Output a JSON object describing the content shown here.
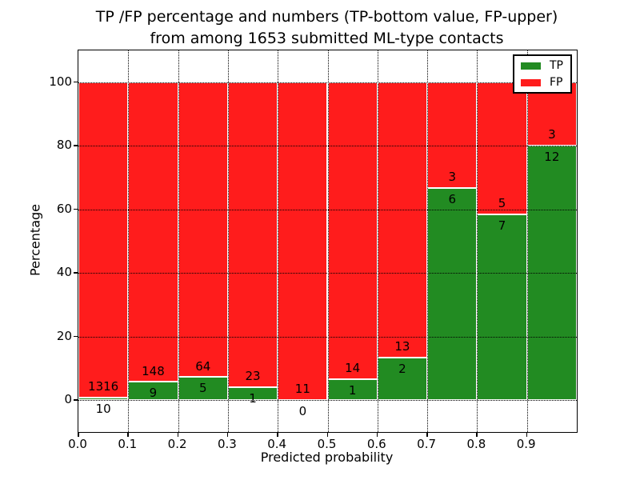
{
  "title": {
    "line1": "TP /FP percentage and numbers (TP-bottom value, FP-upper)",
    "line2": "from among 1653 submitted ML-type contacts"
  },
  "chart_data": {
    "type": "bar",
    "stacked": true,
    "normalized": "each bin stacks to 100 percent",
    "title": "TP /FP percentage and numbers (TP-bottom value, FP-upper)\nfrom among 1653 submitted ML-type contacts",
    "xlabel": "Predicted probability",
    "ylabel": "Percentage",
    "total_contacts": 1653,
    "bins": [
      {
        "range": [
          0.0,
          0.1
        ],
        "tp": 10,
        "fp": 1316,
        "tp_percent": 0.75
      },
      {
        "range": [
          0.1,
          0.2
        ],
        "tp": 9,
        "fp": 148,
        "tp_percent": 5.73
      },
      {
        "range": [
          0.2,
          0.3
        ],
        "tp": 5,
        "fp": 64,
        "tp_percent": 7.25
      },
      {
        "range": [
          0.3,
          0.4
        ],
        "tp": 1,
        "fp": 23,
        "tp_percent": 4.17
      },
      {
        "range": [
          0.4,
          0.5
        ],
        "tp": 0,
        "fp": 11,
        "tp_percent": 0.0
      },
      {
        "range": [
          0.5,
          0.6
        ],
        "tp": 1,
        "fp": 14,
        "tp_percent": 6.67
      },
      {
        "range": [
          0.6,
          0.7
        ],
        "tp": 2,
        "fp": 13,
        "tp_percent": 13.33
      },
      {
        "range": [
          0.7,
          0.8
        ],
        "tp": 6,
        "fp": 3,
        "tp_percent": 66.67
      },
      {
        "range": [
          0.8,
          0.9
        ],
        "tp": 7,
        "fp": 5,
        "tp_percent": 58.33
      },
      {
        "range": [
          0.9,
          1.0
        ],
        "tp": 12,
        "fp": 3,
        "tp_percent": 80.0
      }
    ],
    "xticks": [
      "0.0",
      "0.1",
      "0.2",
      "0.3",
      "0.4",
      "0.5",
      "0.6",
      "0.7",
      "0.8",
      "0.9"
    ],
    "yticks": [
      0,
      20,
      40,
      60,
      80,
      100
    ],
    "xlim": [
      0.0,
      1.0
    ],
    "ylim": [
      -10,
      110
    ],
    "grid": {
      "style": "dotted",
      "color": "#000000"
    },
    "colors": {
      "tp": "#228b22",
      "fp": "#ff1c1c",
      "bar_edge": "#ffffff"
    },
    "legend": {
      "position": "upper-right",
      "entries": [
        {
          "label": "TP",
          "color": "#228b22"
        },
        {
          "label": "FP",
          "color": "#ff1c1c"
        }
      ]
    }
  }
}
